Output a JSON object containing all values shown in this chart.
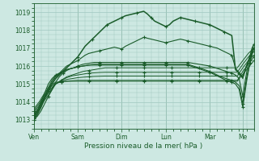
{
  "bg_color": "#cde8e2",
  "grid_color": "#a0c8c0",
  "line_color": "#1a5c2a",
  "xlabel": "Pression niveau de la mer( hPa )",
  "ylim": [
    1012.5,
    1019.5
  ],
  "yticks": [
    1013,
    1014,
    1015,
    1016,
    1017,
    1018,
    1019
  ],
  "day_labels": [
    "Ven",
    "Sam",
    "Dim",
    "Lun",
    "Mar",
    "Me"
  ],
  "day_positions": [
    0,
    24,
    48,
    72,
    96,
    114
  ],
  "xlim": [
    0,
    120
  ],
  "series": [
    {
      "x": [
        0,
        2,
        4,
        6,
        8,
        10,
        12,
        14,
        16,
        18,
        20,
        22,
        24,
        26,
        28,
        30,
        32,
        34,
        36,
        38,
        40,
        42,
        44,
        46,
        48,
        50,
        52,
        54,
        56,
        58,
        60,
        62,
        64,
        66,
        68,
        70,
        72,
        74,
        76,
        78,
        80,
        82,
        84,
        86,
        88,
        90,
        92,
        94,
        96,
        98,
        100,
        102,
        104,
        106,
        108,
        110,
        112,
        114,
        116,
        118,
        120
      ],
      "y": [
        1013.0,
        1013.3,
        1013.7,
        1014.2,
        1014.6,
        1015.0,
        1015.3,
        1015.5,
        1015.7,
        1015.9,
        1016.1,
        1016.3,
        1016.5,
        1016.8,
        1017.1,
        1017.3,
        1017.5,
        1017.7,
        1017.9,
        1018.1,
        1018.3,
        1018.4,
        1018.5,
        1018.6,
        1018.7,
        1018.8,
        1018.85,
        1018.9,
        1018.95,
        1019.0,
        1019.05,
        1018.9,
        1018.7,
        1018.5,
        1018.4,
        1018.3,
        1018.2,
        1018.3,
        1018.5,
        1018.6,
        1018.7,
        1018.65,
        1018.6,
        1018.55,
        1018.5,
        1018.45,
        1018.4,
        1018.35,
        1018.3,
        1018.2,
        1018.1,
        1018.0,
        1017.9,
        1017.8,
        1017.7,
        1015.8,
        1015.6,
        1015.4,
        1016.0,
        1016.5,
        1017.0
      ],
      "lw": 1.1,
      "marker_step": 4
    },
    {
      "x": [
        0,
        2,
        4,
        6,
        8,
        10,
        12,
        14,
        16,
        18,
        20,
        22,
        24,
        26,
        28,
        30,
        32,
        34,
        36,
        38,
        40,
        42,
        44,
        46,
        48,
        50,
        52,
        54,
        56,
        58,
        60,
        62,
        64,
        66,
        68,
        70,
        72,
        74,
        76,
        78,
        80,
        82,
        84,
        86,
        88,
        90,
        92,
        94,
        96,
        98,
        100,
        102,
        104,
        106,
        108,
        110,
        112,
        114,
        116,
        118,
        120
      ],
      "y": [
        1013.1,
        1013.5,
        1014.0,
        1014.5,
        1015.0,
        1015.3,
        1015.5,
        1015.6,
        1015.8,
        1016.0,
        1016.1,
        1016.2,
        1016.3,
        1016.45,
        1016.6,
        1016.7,
        1016.75,
        1016.8,
        1016.85,
        1016.9,
        1016.95,
        1017.0,
        1017.05,
        1017.0,
        1016.95,
        1017.1,
        1017.2,
        1017.3,
        1017.4,
        1017.5,
        1017.6,
        1017.55,
        1017.5,
        1017.45,
        1017.4,
        1017.35,
        1017.3,
        1017.35,
        1017.4,
        1017.45,
        1017.5,
        1017.45,
        1017.4,
        1017.35,
        1017.3,
        1017.25,
        1017.2,
        1017.15,
        1017.1,
        1017.05,
        1017.0,
        1016.9,
        1016.8,
        1016.7,
        1016.6,
        1015.9,
        1015.6,
        1015.3,
        1016.0,
        1016.6,
        1017.2
      ],
      "lw": 0.8,
      "marker_step": 6
    },
    {
      "x": [
        0,
        3,
        6,
        9,
        12,
        15,
        18,
        21,
        24,
        27,
        30,
        33,
        36,
        39,
        42,
        45,
        48,
        51,
        54,
        57,
        60,
        63,
        66,
        69,
        72,
        75,
        78,
        81,
        84,
        87,
        90,
        93,
        96,
        99,
        102,
        105,
        108,
        111,
        114,
        117,
        120
      ],
      "y": [
        1013.2,
        1013.6,
        1014.1,
        1014.5,
        1015.0,
        1015.2,
        1015.4,
        1015.5,
        1015.6,
        1015.7,
        1015.75,
        1015.8,
        1015.85,
        1015.9,
        1015.9,
        1015.9,
        1015.9,
        1015.9,
        1015.9,
        1015.9,
        1015.9,
        1015.9,
        1015.9,
        1015.9,
        1015.9,
        1015.9,
        1015.9,
        1015.9,
        1015.9,
        1015.9,
        1015.9,
        1015.9,
        1015.9,
        1015.9,
        1015.9,
        1015.9,
        1015.9,
        1015.9,
        1016.3,
        1016.7,
        1017.0
      ],
      "lw": 0.7,
      "marker_step": 5
    },
    {
      "x": [
        0,
        3,
        6,
        9,
        12,
        15,
        18,
        21,
        24,
        27,
        30,
        33,
        36,
        39,
        42,
        45,
        48,
        51,
        54,
        57,
        60,
        63,
        66,
        69,
        72,
        75,
        78,
        81,
        84,
        87,
        90,
        93,
        96,
        99,
        102,
        105,
        108,
        111,
        114,
        117,
        120
      ],
      "y": [
        1013.3,
        1013.7,
        1014.2,
        1014.6,
        1015.0,
        1015.2,
        1015.35,
        1015.45,
        1015.5,
        1015.55,
        1015.6,
        1015.62,
        1015.64,
        1015.65,
        1015.65,
        1015.65,
        1015.65,
        1015.65,
        1015.65,
        1015.65,
        1015.65,
        1015.65,
        1015.65,
        1015.65,
        1015.65,
        1015.65,
        1015.65,
        1015.65,
        1015.65,
        1015.65,
        1015.65,
        1015.65,
        1015.65,
        1015.65,
        1015.65,
        1015.65,
        1015.65,
        1015.65,
        1016.1,
        1016.5,
        1016.8
      ],
      "lw": 0.7,
      "marker_step": 5
    },
    {
      "x": [
        0,
        3,
        6,
        9,
        12,
        15,
        18,
        21,
        24,
        27,
        30,
        33,
        36,
        39,
        42,
        45,
        48,
        51,
        54,
        57,
        60,
        63,
        66,
        69,
        72,
        75,
        78,
        81,
        84,
        87,
        90,
        93,
        96,
        99,
        102,
        105,
        108,
        111,
        114,
        117,
        120
      ],
      "y": [
        1013.4,
        1013.8,
        1014.3,
        1014.7,
        1015.0,
        1015.15,
        1015.25,
        1015.3,
        1015.35,
        1015.38,
        1015.4,
        1015.42,
        1015.43,
        1015.44,
        1015.44,
        1015.44,
        1015.44,
        1015.44,
        1015.44,
        1015.44,
        1015.44,
        1015.44,
        1015.44,
        1015.44,
        1015.44,
        1015.44,
        1015.44,
        1015.44,
        1015.44,
        1015.44,
        1015.44,
        1015.44,
        1015.44,
        1015.44,
        1015.44,
        1015.44,
        1015.44,
        1015.44,
        1015.9,
        1016.3,
        1016.6
      ],
      "lw": 0.7,
      "marker_step": 5
    },
    {
      "x": [
        0,
        3,
        6,
        9,
        12,
        15,
        18,
        21,
        24,
        27,
        30,
        33,
        36,
        39,
        42,
        45,
        48,
        51,
        54,
        57,
        60,
        63,
        66,
        69,
        72,
        75,
        78,
        81,
        84,
        87,
        90,
        93,
        96,
        99,
        102,
        105,
        108,
        111,
        114,
        117,
        120
      ],
      "y": [
        1013.5,
        1013.9,
        1014.4,
        1014.8,
        1015.05,
        1015.1,
        1015.15,
        1015.18,
        1015.2,
        1015.2,
        1015.2,
        1015.2,
        1015.2,
        1015.2,
        1015.2,
        1015.2,
        1015.2,
        1015.2,
        1015.2,
        1015.2,
        1015.2,
        1015.2,
        1015.2,
        1015.2,
        1015.2,
        1015.2,
        1015.2,
        1015.2,
        1015.2,
        1015.2,
        1015.2,
        1015.2,
        1015.2,
        1015.2,
        1015.2,
        1015.2,
        1015.2,
        1015.2,
        1015.7,
        1016.1,
        1016.5
      ],
      "lw": 0.7,
      "marker_step": 5
    },
    {
      "x": [
        0,
        3,
        6,
        9,
        12,
        15,
        18,
        21,
        24,
        27,
        30,
        33,
        36,
        39,
        42,
        45,
        48,
        51,
        54,
        57,
        60,
        63,
        66,
        69,
        72,
        75,
        78,
        81,
        84,
        87,
        90,
        93,
        96,
        99,
        102,
        105,
        108,
        111,
        114,
        117,
        120
      ],
      "y": [
        1013.6,
        1014.0,
        1014.5,
        1014.9,
        1015.1,
        1015.12,
        1015.15,
        1015.15,
        1015.15,
        1015.15,
        1015.15,
        1015.15,
        1015.15,
        1015.15,
        1015.15,
        1015.15,
        1015.15,
        1015.15,
        1015.15,
        1015.15,
        1015.15,
        1015.15,
        1015.15,
        1015.15,
        1015.15,
        1015.15,
        1015.15,
        1015.15,
        1015.15,
        1015.15,
        1015.15,
        1015.15,
        1015.15,
        1015.15,
        1015.15,
        1015.15,
        1015.15,
        1015.15,
        1015.55,
        1015.9,
        1016.3
      ],
      "lw": 0.7,
      "marker_step": 5
    },
    {
      "x": [
        0,
        2,
        4,
        6,
        8,
        10,
        12,
        14,
        16,
        18,
        20,
        22,
        24,
        27,
        30,
        33,
        36,
        39,
        42,
        45,
        48,
        51,
        54,
        57,
        60,
        63,
        66,
        69,
        72,
        75,
        78,
        81,
        84,
        87,
        90,
        93,
        96,
        99,
        102,
        105,
        108,
        110,
        112,
        113,
        114,
        115,
        116,
        117,
        118,
        119,
        120
      ],
      "y": [
        1013.0,
        1013.2,
        1013.5,
        1013.9,
        1014.3,
        1014.7,
        1015.1,
        1015.4,
        1015.6,
        1015.75,
        1015.85,
        1015.9,
        1016.0,
        1016.1,
        1016.15,
        1016.2,
        1016.2,
        1016.2,
        1016.2,
        1016.2,
        1016.2,
        1016.2,
        1016.2,
        1016.2,
        1016.2,
        1016.2,
        1016.2,
        1016.2,
        1016.2,
        1016.2,
        1016.2,
        1016.2,
        1016.2,
        1016.15,
        1016.1,
        1016.05,
        1016.0,
        1015.9,
        1015.8,
        1015.7,
        1015.6,
        1015.5,
        1015.3,
        1014.8,
        1014.3,
        1015.0,
        1015.6,
        1016.2,
        1016.6,
        1017.0,
        1017.2
      ],
      "lw": 0.8,
      "marker_step": 4
    },
    {
      "x": [
        0,
        2,
        4,
        6,
        8,
        10,
        12,
        14,
        16,
        18,
        20,
        22,
        24,
        27,
        30,
        33,
        36,
        39,
        42,
        45,
        48,
        51,
        54,
        57,
        60,
        63,
        66,
        69,
        72,
        75,
        78,
        81,
        84,
        87,
        90,
        93,
        96,
        99,
        102,
        105,
        108,
        110,
        112,
        113,
        114,
        115,
        116,
        117,
        118,
        119,
        120
      ],
      "y": [
        1013.1,
        1013.4,
        1013.8,
        1014.3,
        1014.7,
        1015.1,
        1015.4,
        1015.55,
        1015.7,
        1015.8,
        1015.85,
        1015.9,
        1015.95,
        1016.0,
        1016.05,
        1016.1,
        1016.1,
        1016.1,
        1016.1,
        1016.1,
        1016.1,
        1016.1,
        1016.1,
        1016.1,
        1016.1,
        1016.1,
        1016.1,
        1016.1,
        1016.1,
        1016.1,
        1016.1,
        1016.1,
        1016.1,
        1016.0,
        1015.9,
        1015.8,
        1015.7,
        1015.55,
        1015.4,
        1015.3,
        1015.2,
        1015.1,
        1014.9,
        1014.4,
        1013.9,
        1014.6,
        1015.3,
        1015.8,
        1016.3,
        1016.7,
        1017.0
      ],
      "lw": 0.8,
      "marker_step": 4
    },
    {
      "x": [
        0,
        2,
        4,
        6,
        8,
        10,
        12,
        14,
        16,
        18,
        20,
        22,
        24,
        27,
        30,
        33,
        36,
        39,
        42,
        45,
        48,
        51,
        54,
        57,
        60,
        63,
        66,
        69,
        72,
        75,
        78,
        81,
        84,
        87,
        90,
        93,
        96,
        99,
        102,
        105,
        108,
        110,
        112,
        113,
        114,
        115,
        116,
        117,
        118,
        119,
        120
      ],
      "y": [
        1013.2,
        1013.5,
        1013.9,
        1014.3,
        1014.8,
        1015.2,
        1015.45,
        1015.6,
        1015.7,
        1015.8,
        1015.85,
        1015.9,
        1015.95,
        1016.0,
        1016.05,
        1016.05,
        1016.05,
        1016.05,
        1016.05,
        1016.05,
        1016.05,
        1016.05,
        1016.05,
        1016.05,
        1016.05,
        1016.05,
        1016.05,
        1016.05,
        1016.05,
        1016.05,
        1016.05,
        1016.05,
        1016.05,
        1015.95,
        1015.85,
        1015.75,
        1015.65,
        1015.5,
        1015.35,
        1015.2,
        1015.1,
        1015.0,
        1014.7,
        1014.2,
        1013.7,
        1014.4,
        1015.1,
        1015.7,
        1016.2,
        1016.6,
        1017.0
      ],
      "lw": 0.8,
      "marker_step": 4
    }
  ]
}
